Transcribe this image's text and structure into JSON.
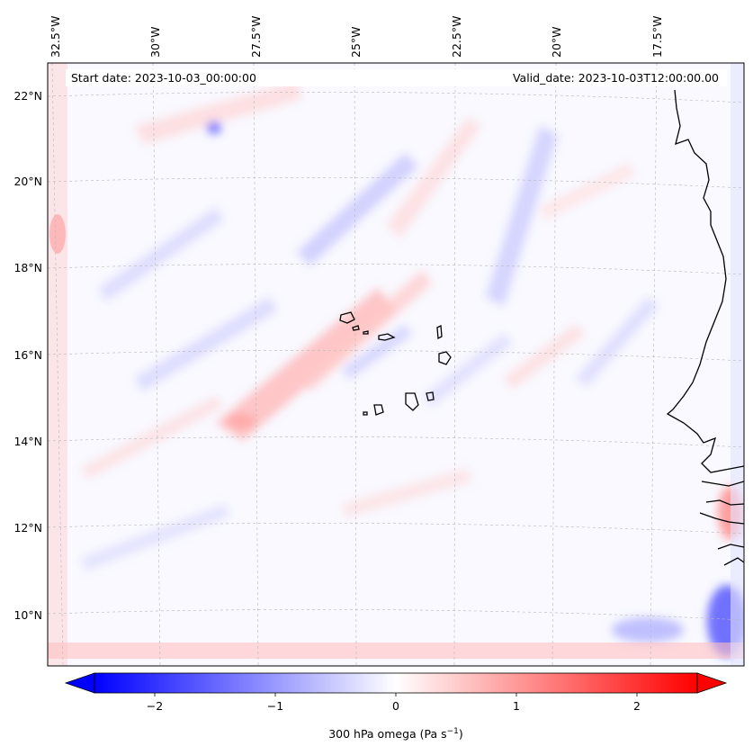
{
  "map": {
    "title_left": "Start date: 2023-10-03_00:00:00",
    "title_right": "Valid_date: 2023-10-03T12:00:00.00",
    "projection": "lambert-conformal",
    "lon_labels": [
      "32.5°W",
      "30°W",
      "27.5°W",
      "25°W",
      "22.5°W",
      "20°W",
      "17.5°W"
    ],
    "lat_labels": [
      "22°N",
      "20°N",
      "18°N",
      "16°N",
      "14°N",
      "12°N",
      "10°N"
    ],
    "gridlines": true,
    "field": "300 hPa omega",
    "coastline_color": "#000000"
  },
  "colorbar": {
    "label_text": "300 hPa omega (Pa s",
    "label_sup": "−1",
    "label_close": ")",
    "ticks": [
      "−2",
      "−1",
      "0",
      "1",
      "2"
    ],
    "tick_values": [
      -2,
      -1,
      0,
      1,
      2
    ],
    "vmin": -2.5,
    "vmax": 2.5,
    "colormap": "bwr",
    "extend": "both",
    "color_low": "#0000ff",
    "color_mid": "#ffffff",
    "color_high": "#ff0000"
  }
}
